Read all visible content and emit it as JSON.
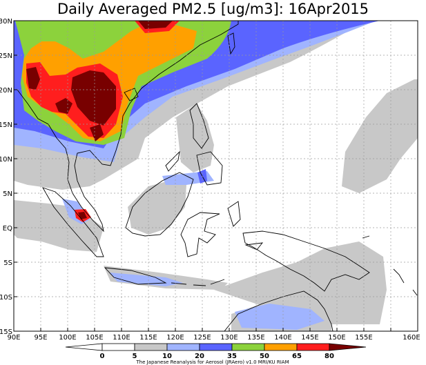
{
  "title": "Daily Averaged PM2.5 [ug/m3]: 16Apr2015",
  "lat_labels": [
    "30N",
    "25N",
    "20N",
    "15N",
    "10N",
    "5N",
    "EQ",
    "5S",
    "10S",
    "15S"
  ],
  "lon_labels": [
    "90E",
    "95E",
    "100E",
    "105E",
    "110E",
    "115E",
    "120E",
    "125E",
    "130E",
    "135E",
    "140E",
    "145E",
    "150E",
    "155E",
    "160E"
  ],
  "colorbar": {
    "labels": [
      "0",
      "5",
      "10",
      "20",
      "35",
      "50",
      "65",
      "80"
    ],
    "colors": [
      "#ffffff",
      "#ffffff",
      "#c8c8c8",
      "#a0b4ff",
      "#5a64ff",
      "#8cd23c",
      "#ffa000",
      "#ff1e1e",
      "#780000"
    ]
  },
  "credit": "The Japanese Reanalysis for Aerosol (JRAero) v1.0 MRI/KU RIAM"
}
